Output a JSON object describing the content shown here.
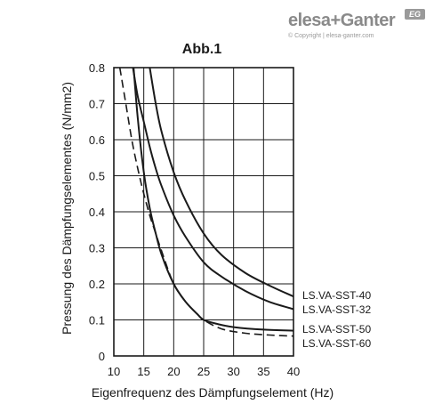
{
  "logo": {
    "brand": "elesa+Ganter",
    "badge": "EG",
    "copyright": "© Copyright | elesa-ganter.com"
  },
  "chart_data": {
    "type": "line",
    "title": "Abb.1",
    "xlabel": "Eigenfrequenz des Dämpfungselement (Hz)",
    "ylabel": "Pressung des Dämpfungselementes (N/mm2)",
    "xlim": [
      10,
      40
    ],
    "ylim": [
      0,
      0.8
    ],
    "xticks": [
      10,
      15,
      20,
      25,
      30,
      35,
      40
    ],
    "yticks": [
      "0",
      "0.1",
      "0.2",
      "0.3",
      "0.4",
      "0.5",
      "0.6",
      "0.7",
      "0.8"
    ],
    "grid": true,
    "series": [
      {
        "name": "LS.VA-SST-40",
        "style": "solid",
        "x": [
          16.0,
          17.0,
          18.0,
          20.0,
          22.0,
          25.0,
          28.0,
          32.0,
          36.0,
          40.0
        ],
        "y": [
          0.8,
          0.7,
          0.62,
          0.51,
          0.43,
          0.34,
          0.28,
          0.23,
          0.195,
          0.165
        ]
      },
      {
        "name": "LS.VA-SST-32",
        "style": "solid",
        "x": [
          13.2,
          14.0,
          15.0,
          16.0,
          17.0,
          18.0,
          20.0,
          22.0,
          25.0,
          28.0,
          32.0,
          36.0,
          40.0
        ],
        "y": [
          0.8,
          0.72,
          0.65,
          0.58,
          0.52,
          0.47,
          0.39,
          0.33,
          0.26,
          0.22,
          0.18,
          0.15,
          0.13
        ]
      },
      {
        "name": "LS.VA-SST-50",
        "style": "solid",
        "x": [
          13.3,
          14.0,
          15.0,
          16.0,
          17.0,
          18.0,
          20.0,
          22.0,
          24.0,
          25.0,
          27.0,
          30.0,
          35.0,
          40.0
        ],
        "y": [
          0.8,
          0.66,
          0.51,
          0.41,
          0.34,
          0.28,
          0.2,
          0.15,
          0.115,
          0.1,
          0.09,
          0.08,
          0.073,
          0.07
        ]
      },
      {
        "name": "LS.VA-SST-60",
        "style": "dashed",
        "x": [
          11.0,
          12.0,
          13.0,
          14.0,
          15.0,
          16.0,
          17.0,
          18.0,
          20.0,
          22.0,
          24.0,
          25.0,
          28.0,
          32.0,
          36.0,
          40.0
        ],
        "y": [
          0.8,
          0.7,
          0.6,
          0.52,
          0.45,
          0.39,
          0.34,
          0.29,
          0.2,
          0.15,
          0.115,
          0.1,
          0.075,
          0.063,
          0.058,
          0.055
        ]
      }
    ]
  }
}
